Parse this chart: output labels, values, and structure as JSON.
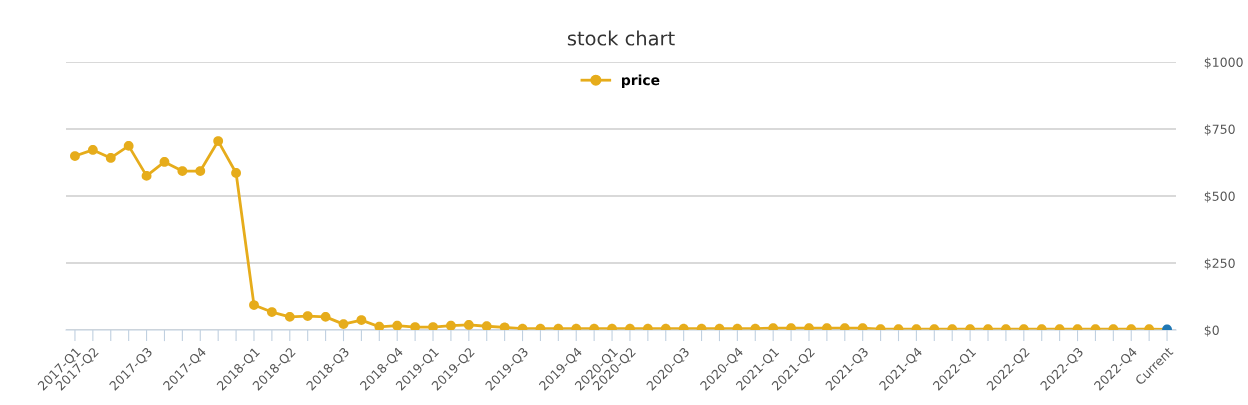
{
  "chart_data": {
    "type": "line",
    "title": "stock chart",
    "categories": [
      "2017-Q1",
      "2017-Q2",
      null,
      null,
      "2017-Q3",
      null,
      null,
      "2017-Q4",
      null,
      null,
      "2018-Q1",
      null,
      "2018-Q2",
      null,
      null,
      "2018-Q3",
      null,
      null,
      "2018-Q4",
      null,
      "2019-Q1",
      null,
      "2019-Q2",
      null,
      null,
      "2019-Q3",
      null,
      null,
      "2019-Q4",
      null,
      "2020-Q1",
      "2020-Q2",
      null,
      null,
      "2020-Q3",
      null,
      null,
      "2020-Q4",
      null,
      "2021-Q1",
      null,
      "2021-Q2",
      null,
      null,
      "2021-Q3",
      null,
      null,
      "2021-Q4",
      null,
      null,
      "2022-Q1",
      null,
      null,
      "2022-Q2",
      null,
      null,
      "2022-Q3",
      null,
      null,
      "2022-Q4",
      null,
      "Current"
    ],
    "series": [
      {
        "name": "price",
        "color": "#e6ac1b",
        "colors": [
          "#e6ac1b",
          "#e6ac1b",
          "#e6ac1b",
          "#e6ac1b",
          "#e6ac1b",
          "#e6ac1b",
          "#e6ac1b",
          "#e6ac1b",
          "#e6ac1b",
          "#e6ac1b",
          "#e6ac1b",
          "#e6ac1b",
          "#e6ac1b",
          "#e6ac1b",
          "#e6ac1b",
          "#e6ac1b",
          "#e6ac1b",
          "#e6ac1b",
          "#e6ac1b",
          "#e6ac1b",
          "#e6ac1b",
          "#e6ac1b",
          "#e6ac1b",
          "#e6ac1b",
          "#e6ac1b",
          "#e6ac1b",
          "#e6ac1b",
          "#e6ac1b",
          "#e6ac1b",
          "#e6ac1b",
          "#e6ac1b",
          "#e6ac1b",
          "#e6ac1b",
          "#e6ac1b",
          "#e6ac1b",
          "#e6ac1b",
          "#e6ac1b",
          "#e6ac1b",
          "#e6ac1b",
          "#e6ac1b",
          "#e6ac1b",
          "#e6ac1b",
          "#e6ac1b",
          "#e6ac1b",
          "#e6ac1b",
          "#e6ac1b",
          "#e6ac1b",
          "#e6ac1b",
          "#e6ac1b",
          "#e6ac1b",
          "#e6ac1b",
          "#e6ac1b",
          "#e6ac1b",
          "#e6ac1b",
          "#e6ac1b",
          "#e6ac1b",
          "#e6ac1b",
          "#e6ac1b",
          "#e6ac1b",
          "#e6ac1b",
          "#e6ac1b",
          "#1f77b4"
        ],
        "values": [
          649,
          672,
          642,
          687,
          575,
          627,
          593,
          593,
          705,
          586,
          93,
          67,
          49,
          52,
          49,
          22,
          37,
          12,
          16,
          11,
          11,
          16,
          19,
          14,
          10,
          5,
          5,
          5,
          5,
          5,
          5,
          5,
          5,
          5,
          5,
          5,
          5,
          5,
          5,
          7,
          7,
          7,
          7,
          7,
          7,
          3,
          3,
          3,
          3,
          3,
          3,
          3,
          3,
          3,
          3,
          3,
          3,
          3,
          3,
          3,
          3,
          2
        ]
      }
    ],
    "ylim": [
      0,
      1000
    ],
    "yticks": [
      {
        "value": 0,
        "label": "$0"
      },
      {
        "value": 250,
        "label": "$250"
      },
      {
        "value": 500,
        "label": "$500"
      },
      {
        "value": 750,
        "label": "$750"
      },
      {
        "value": 1000,
        "label": "$1000"
      }
    ],
    "grid": "y",
    "legend": "top",
    "marker": "circle",
    "line_style": "solid"
  }
}
